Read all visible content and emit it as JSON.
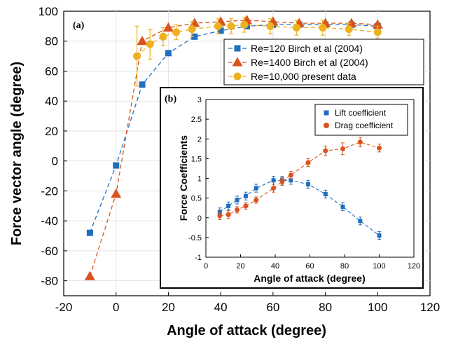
{
  "chart_data": [
    {
      "panel": "(a)",
      "type": "line",
      "xlabel": "Angle of attack (degree)",
      "ylabel": "Force vector angle (degree)",
      "xlim": [
        -20,
        120
      ],
      "ylim": [
        -90,
        100
      ],
      "xticks": [
        -20,
        0,
        20,
        40,
        60,
        80,
        100,
        120
      ],
      "yticks": [
        -80,
        -60,
        -40,
        -20,
        0,
        20,
        40,
        60,
        80,
        100
      ],
      "grid": true,
      "legend": "upper-right",
      "series": [
        {
          "name": "Re=120 Birch et al (2004)",
          "color": "#1f6fbf",
          "marker": "square",
          "x": [
            -10,
            0,
            10,
            20,
            30,
            40,
            50,
            60,
            70,
            80,
            90,
            100
          ],
          "y": [
            -48,
            -3,
            51,
            72,
            83,
            87,
            90,
            91,
            91,
            91,
            91,
            90
          ],
          "err": []
        },
        {
          "name": "Re=1400 Birch et al (2004)",
          "color": "#d9531e",
          "marker": "triangle",
          "x": [
            -10,
            0,
            10,
            20,
            30,
            40,
            50,
            60,
            70,
            80,
            90,
            100
          ],
          "y": [
            -77,
            -22,
            80,
            89,
            92,
            93,
            94,
            93,
            92,
            92,
            92,
            91
          ],
          "err": []
        },
        {
          "name": "Re=10,000 present data",
          "color": "#edb120",
          "marker": "circle",
          "x": [
            8,
            13,
            18,
            23,
            29,
            39,
            44,
            49,
            59,
            69,
            79,
            89,
            100
          ],
          "y": [
            70,
            78,
            83,
            86,
            88,
            90,
            90,
            91,
            90,
            89,
            89,
            88,
            86
          ],
          "err": [
            20,
            10,
            6,
            5,
            5,
            5,
            5,
            5,
            5,
            5,
            5,
            4,
            4
          ]
        }
      ]
    },
    {
      "panel": "(b)",
      "type": "line",
      "xlabel": "Angle of attack (degree)",
      "ylabel": "Force Coefficients",
      "xlim": [
        0,
        120
      ],
      "ylim": [
        -1,
        3
      ],
      "xticks": [
        0,
        20,
        40,
        60,
        80,
        100,
        120
      ],
      "yticks": [
        -1,
        -0.5,
        0,
        0.5,
        1,
        1.5,
        2,
        2.5,
        3
      ],
      "grid": false,
      "legend": "upper-right",
      "series": [
        {
          "name": "Lift coefficient",
          "color": "#1f6fbf",
          "marker": "square",
          "x": [
            8,
            13,
            18,
            23,
            29,
            39,
            44,
            49,
            59,
            69,
            79,
            89,
            100
          ],
          "y": [
            0.15,
            0.3,
            0.45,
            0.55,
            0.75,
            0.95,
            0.95,
            0.95,
            0.85,
            0.6,
            0.28,
            -0.08,
            -0.45
          ],
          "err": [
            0.1,
            0.1,
            0.1,
            0.1,
            0.1,
            0.1,
            0.1,
            0.1,
            0.1,
            0.1,
            0.1,
            0.1,
            0.1
          ]
        },
        {
          "name": "Drag coefficient",
          "color": "#d9531e",
          "marker": "circle",
          "x": [
            8,
            13,
            18,
            23,
            29,
            39,
            44,
            49,
            59,
            69,
            79,
            89,
            100
          ],
          "y": [
            0.05,
            0.08,
            0.2,
            0.3,
            0.45,
            0.75,
            0.92,
            1.08,
            1.4,
            1.7,
            1.75,
            1.92,
            1.77
          ],
          "err": [
            0.1,
            0.1,
            0.08,
            0.08,
            0.08,
            0.1,
            0.1,
            0.1,
            0.1,
            0.12,
            0.15,
            0.12,
            0.1
          ]
        }
      ]
    }
  ]
}
